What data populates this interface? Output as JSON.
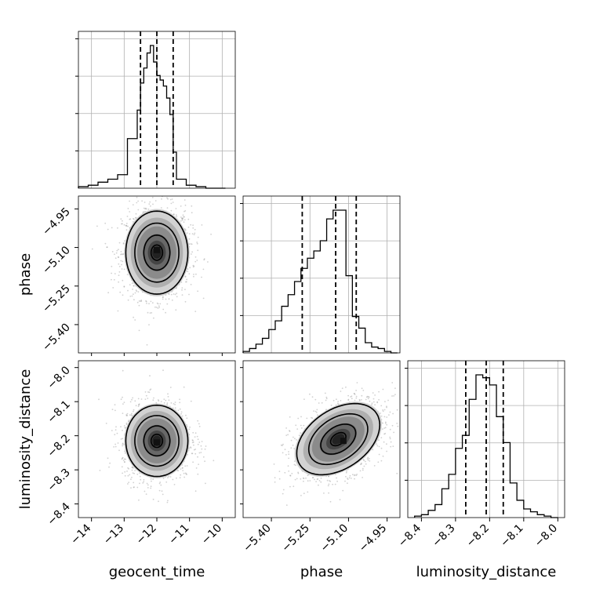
{
  "colors": {
    "line": "#000000",
    "grid": "#b0b0b0",
    "background": "#ffffff",
    "shade_dark": "#111111",
    "shade_light": "#e8e8e8",
    "scatter": "#9a9a9a"
  },
  "chart_data": {
    "type": "corner",
    "grid": true,
    "parameters": [
      "geocent_time",
      "phase",
      "luminosity_distance"
    ],
    "axes": {
      "geocent_time": {
        "label": "geocent_time",
        "range": [
          -14.4,
          -9.6
        ],
        "ticks": [
          -14,
          -13,
          -12,
          -11,
          -10
        ],
        "tick_labels": [
          "−14",
          "−13",
          "−12",
          "−11",
          "−10"
        ],
        "quantiles": [
          -12.5,
          -12.0,
          -11.5
        ]
      },
      "phase": {
        "label": "phase",
        "range": [
          -5.51,
          -4.9
        ],
        "ticks": [
          -5.4,
          -5.25,
          -5.1,
          -4.95
        ],
        "tick_labels": [
          "−5.40",
          "−5.25",
          "−5.10",
          "−4.95"
        ],
        "quantiles": [
          -5.28,
          -5.15,
          -5.07
        ]
      },
      "luminosity_distance": {
        "label": "luminosity_distance",
        "range": [
          -8.44,
          -7.98
        ],
        "ticks": [
          -8.4,
          -8.3,
          -8.2,
          -8.1,
          -8.0
        ],
        "tick_labels": [
          "−8.4",
          "−8.3",
          "−8.2",
          "−8.1",
          "−8.0"
        ],
        "quantiles": [
          -8.27,
          -8.21,
          -8.16
        ]
      }
    },
    "histograms": [
      {
        "parameter": "geocent_time",
        "bins": [
          -14.4,
          -14.1,
          -13.8,
          -13.5,
          -13.2,
          -12.9,
          -12.6,
          -12.5,
          -12.4,
          -12.3,
          -12.2,
          -12.1,
          -12.0,
          -11.9,
          -11.8,
          -11.7,
          -11.6,
          -11.5,
          -11.4,
          -11.1,
          -10.8,
          -10.5,
          -10.2,
          -9.9
        ],
        "counts": [
          0.01,
          0.02,
          0.04,
          0.06,
          0.09,
          0.33,
          0.52,
          0.7,
          0.8,
          0.9,
          0.95,
          0.84,
          0.75,
          0.72,
          0.68,
          0.6,
          0.49,
          0.24,
          0.06,
          0.02,
          0.01,
          0.0,
          0.0
        ]
      },
      {
        "parameter": "phase",
        "bins": [
          -5.51,
          -5.485,
          -5.46,
          -5.435,
          -5.41,
          -5.385,
          -5.36,
          -5.335,
          -5.31,
          -5.285,
          -5.26,
          -5.235,
          -5.21,
          -5.185,
          -5.16,
          -5.135,
          -5.11,
          -5.085,
          -5.06,
          -5.035,
          -5.01,
          -4.985,
          -4.96,
          -4.935,
          -4.91
        ],
        "counts": [
          0.01,
          0.03,
          0.06,
          0.1,
          0.16,
          0.22,
          0.32,
          0.4,
          0.49,
          0.58,
          0.65,
          0.7,
          0.77,
          0.92,
          0.98,
          0.98,
          0.53,
          0.25,
          0.17,
          0.07,
          0.04,
          0.03,
          0.01,
          0.0
        ]
      },
      {
        "parameter": "luminosity_distance",
        "bins": [
          -8.42,
          -8.4,
          -8.38,
          -8.36,
          -8.34,
          -8.32,
          -8.3,
          -8.28,
          -8.26,
          -8.24,
          -8.22,
          -8.2,
          -8.18,
          -8.16,
          -8.14,
          -8.12,
          -8.1,
          -8.08,
          -8.06,
          -8.04,
          -8.02,
          -8.0
        ],
        "counts": [
          0.01,
          0.02,
          0.05,
          0.09,
          0.2,
          0.3,
          0.48,
          0.57,
          0.82,
          0.99,
          0.97,
          0.92,
          0.7,
          0.52,
          0.24,
          0.12,
          0.06,
          0.04,
          0.02,
          0.01,
          0.0
        ]
      }
    ],
    "joint": [
      {
        "x": "geocent_time",
        "y": "phase",
        "mean": [
          -12.0,
          -5.12
        ],
        "sd": [
          0.5,
          0.085
        ],
        "corr": 0.0,
        "peak": [
          -12.0,
          -5.11
        ],
        "scatter_count": 1500
      },
      {
        "x": "geocent_time",
        "y": "luminosity_distance",
        "mean": [
          -12.0,
          -8.215
        ],
        "sd": [
          0.5,
          0.055
        ],
        "corr": 0.0,
        "peak": [
          -12.0,
          -8.22
        ],
        "scatter_count": 1500
      },
      {
        "x": "phase",
        "y": "luminosity_distance",
        "mean": [
          -5.14,
          -8.21
        ],
        "sd": [
          0.085,
          0.055
        ],
        "corr": 0.4,
        "peak": [
          -5.12,
          -8.215
        ],
        "scatter_count": 1500
      }
    ]
  }
}
